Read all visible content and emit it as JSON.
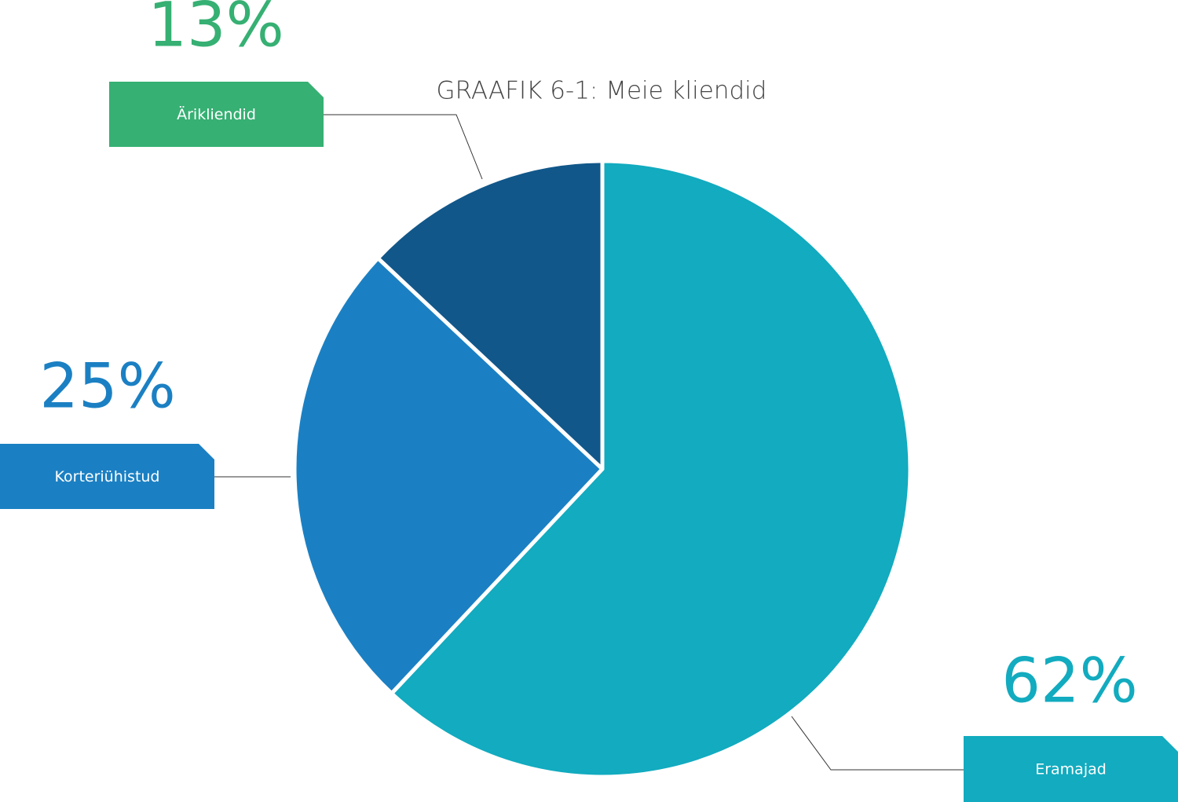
{
  "chart_data": {
    "type": "pie",
    "title": "GRAAFIK 6-1: Meie kliendid",
    "categories": [
      "Eramajad",
      "Korteriühistud",
      "Ärikliendid"
    ],
    "values": [
      62,
      25,
      13
    ],
    "value_labels": [
      "62%",
      "25%",
      "13%"
    ],
    "colors": [
      "#12abbf",
      "#1b80c3",
      "#11578a"
    ],
    "label_colors": [
      "#12abbf",
      "#1b80c3",
      "#36b073"
    ]
  }
}
